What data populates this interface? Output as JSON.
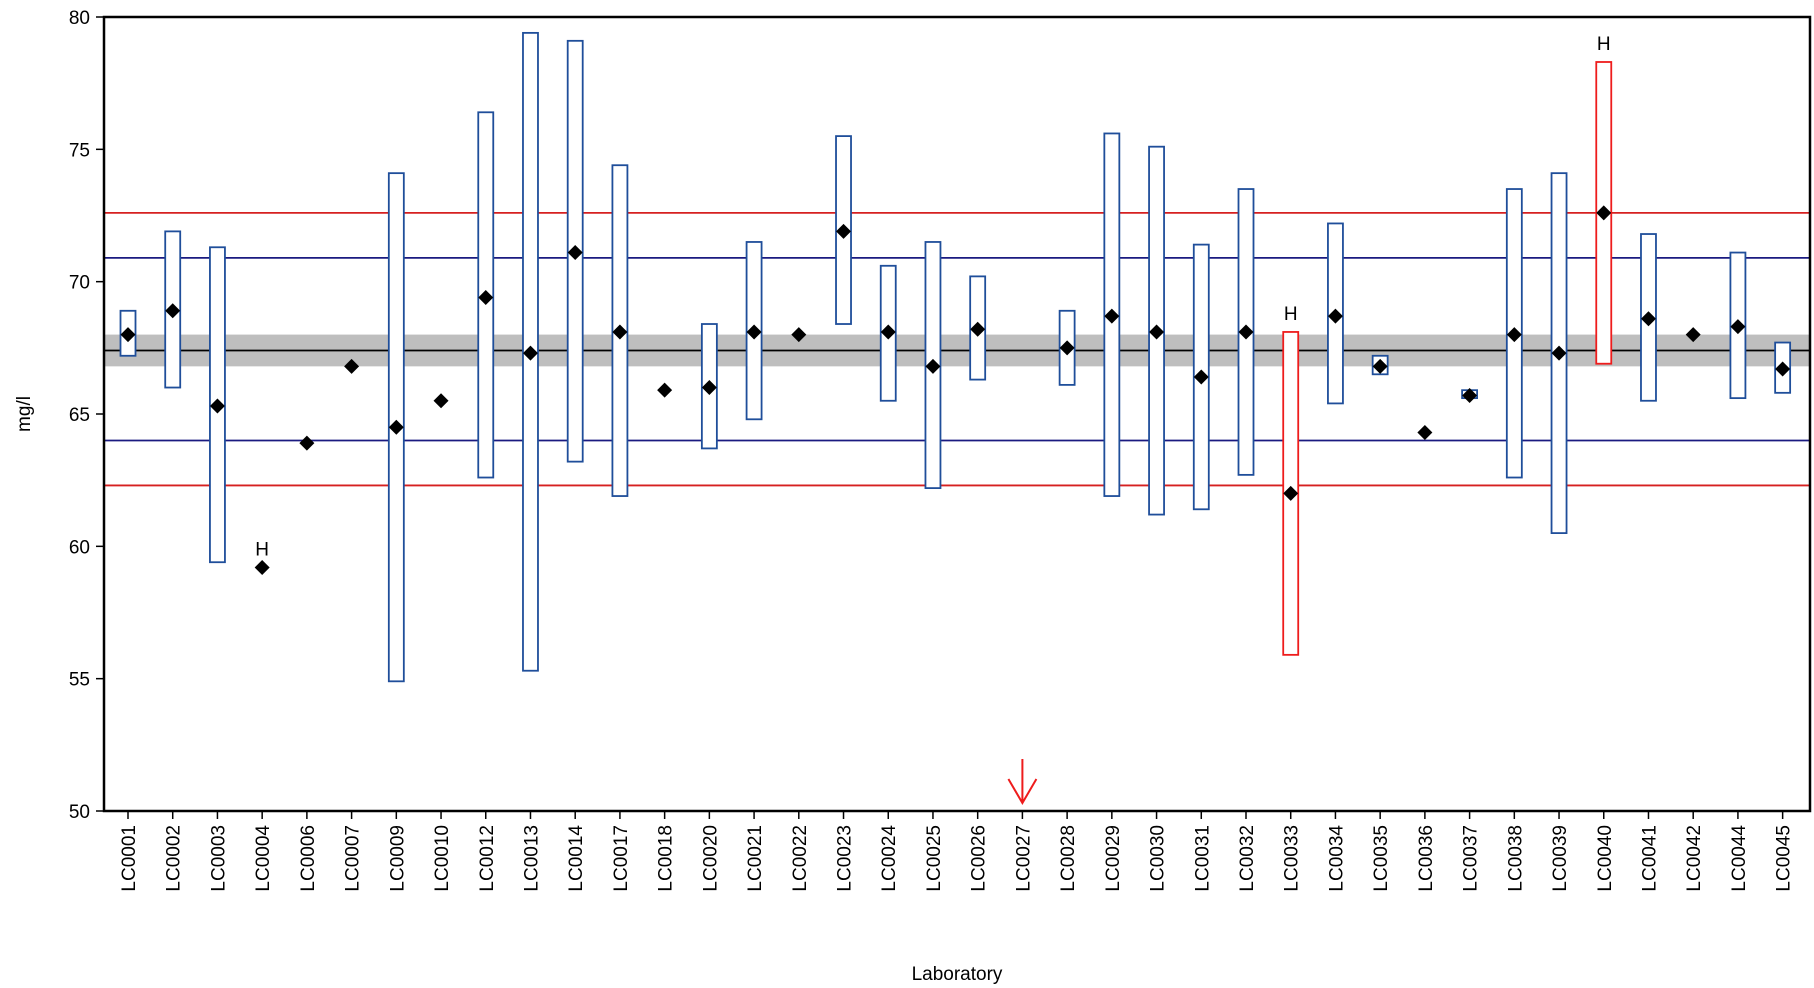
{
  "chart_data": {
    "type": "scatter",
    "title": "",
    "xlabel": "Laboratory",
    "ylabel": "mg/l",
    "ylim": [
      50,
      80
    ],
    "y_ticks": [
      50,
      55,
      60,
      65,
      70,
      75,
      80
    ],
    "grid": false,
    "legend": "none",
    "reference_lines": {
      "mean": 67.4,
      "mean_band": [
        66.8,
        68.0
      ],
      "inner_limits": [
        64.0,
        70.9
      ],
      "outer_limits": [
        62.3,
        72.6
      ]
    },
    "colors": {
      "normal_interval": "#1f4e9a",
      "flagged_interval": "#ee1c1c",
      "mean_line": "#000000",
      "band": "#bebebe",
      "inner_limit": "#1a1a80",
      "outer_limit": "#d62020",
      "marker": "#000000",
      "highlight_arrow": "#ee1c1c"
    },
    "highlight": "LC0027",
    "categories": [
      "LC0001",
      "LC0002",
      "LC0003",
      "LC0004",
      "LC0006",
      "LC0007",
      "LC0009",
      "LC0010",
      "LC0012",
      "LC0013",
      "LC0014",
      "LC0017",
      "LC0018",
      "LC0020",
      "LC0021",
      "LC0022",
      "LC0023",
      "LC0024",
      "LC0025",
      "LC0026",
      "LC0027",
      "LC0028",
      "LC0029",
      "LC0030",
      "LC0031",
      "LC0032",
      "LC0033",
      "LC0034",
      "LC0035",
      "LC0036",
      "LC0037",
      "LC0038",
      "LC0039",
      "LC0040",
      "LC0041",
      "LC0042",
      "LC0044",
      "LC0045"
    ],
    "points": [
      {
        "lab": "LC0001",
        "value": 68.0,
        "low": 67.2,
        "high": 68.9,
        "flag": ""
      },
      {
        "lab": "LC0002",
        "value": 68.9,
        "low": 66.0,
        "high": 71.9,
        "flag": ""
      },
      {
        "lab": "LC0003",
        "value": 65.3,
        "low": 59.4,
        "high": 71.3,
        "flag": ""
      },
      {
        "lab": "LC0004",
        "value": 59.2,
        "low": null,
        "high": null,
        "flag": "H"
      },
      {
        "lab": "LC0006",
        "value": 63.9,
        "low": null,
        "high": null,
        "flag": ""
      },
      {
        "lab": "LC0007",
        "value": 66.8,
        "low": null,
        "high": null,
        "flag": ""
      },
      {
        "lab": "LC0009",
        "value": 64.5,
        "low": 54.9,
        "high": 74.1,
        "flag": ""
      },
      {
        "lab": "LC0010",
        "value": 65.5,
        "low": null,
        "high": null,
        "flag": ""
      },
      {
        "lab": "LC0012",
        "value": 69.4,
        "low": 62.6,
        "high": 76.4,
        "flag": ""
      },
      {
        "lab": "LC0013",
        "value": 67.3,
        "low": 55.3,
        "high": 79.4,
        "flag": ""
      },
      {
        "lab": "LC0014",
        "value": 71.1,
        "low": 63.2,
        "high": 79.1,
        "flag": ""
      },
      {
        "lab": "LC0017",
        "value": 68.1,
        "low": 61.9,
        "high": 74.4,
        "flag": ""
      },
      {
        "lab": "LC0018",
        "value": 65.9,
        "low": null,
        "high": null,
        "flag": ""
      },
      {
        "lab": "LC0020",
        "value": 66.0,
        "low": 63.7,
        "high": 68.4,
        "flag": ""
      },
      {
        "lab": "LC0021",
        "value": 68.1,
        "low": 64.8,
        "high": 71.5,
        "flag": ""
      },
      {
        "lab": "LC0022",
        "value": 68.0,
        "low": null,
        "high": null,
        "flag": ""
      },
      {
        "lab": "LC0023",
        "value": 71.9,
        "low": 68.4,
        "high": 75.5,
        "flag": ""
      },
      {
        "lab": "LC0024",
        "value": 68.1,
        "low": 65.5,
        "high": 70.6,
        "flag": ""
      },
      {
        "lab": "LC0025",
        "value": 66.8,
        "low": 62.2,
        "high": 71.5,
        "flag": ""
      },
      {
        "lab": "LC0026",
        "value": 68.2,
        "low": 66.3,
        "high": 70.2,
        "flag": ""
      },
      {
        "lab": "LC0027",
        "value": null,
        "low": null,
        "high": null,
        "flag": ""
      },
      {
        "lab": "LC0028",
        "value": 67.5,
        "low": 66.1,
        "high": 68.9,
        "flag": ""
      },
      {
        "lab": "LC0029",
        "value": 68.7,
        "low": 61.9,
        "high": 75.6,
        "flag": ""
      },
      {
        "lab": "LC0030",
        "value": 68.1,
        "low": 61.2,
        "high": 75.1,
        "flag": ""
      },
      {
        "lab": "LC0031",
        "value": 66.4,
        "low": 61.4,
        "high": 71.4,
        "flag": ""
      },
      {
        "lab": "LC0032",
        "value": 68.1,
        "low": 62.7,
        "high": 73.5,
        "flag": ""
      },
      {
        "lab": "LC0033",
        "value": 62.0,
        "low": 55.9,
        "high": 68.1,
        "flag": "H"
      },
      {
        "lab": "LC0034",
        "value": 68.7,
        "low": 65.4,
        "high": 72.2,
        "flag": ""
      },
      {
        "lab": "LC0035",
        "value": 66.8,
        "low": 66.5,
        "high": 67.2,
        "flag": ""
      },
      {
        "lab": "LC0036",
        "value": 64.3,
        "low": null,
        "high": null,
        "flag": ""
      },
      {
        "lab": "LC0037",
        "value": 65.7,
        "low": 65.6,
        "high": 65.9,
        "flag": ""
      },
      {
        "lab": "LC0038",
        "value": 68.0,
        "low": 62.6,
        "high": 73.5,
        "flag": ""
      },
      {
        "lab": "LC0039",
        "value": 67.3,
        "low": 60.5,
        "high": 74.1,
        "flag": ""
      },
      {
        "lab": "LC0040",
        "value": 72.6,
        "low": 66.9,
        "high": 78.3,
        "flag": "H"
      },
      {
        "lab": "LC0041",
        "value": 68.6,
        "low": 65.5,
        "high": 71.8,
        "flag": ""
      },
      {
        "lab": "LC0042",
        "value": 68.0,
        "low": null,
        "high": null,
        "flag": ""
      },
      {
        "lab": "LC0044",
        "value": 68.3,
        "low": 65.6,
        "high": 71.1,
        "flag": ""
      },
      {
        "lab": "LC0045",
        "value": 66.7,
        "low": 65.8,
        "high": 67.7,
        "flag": ""
      }
    ]
  }
}
